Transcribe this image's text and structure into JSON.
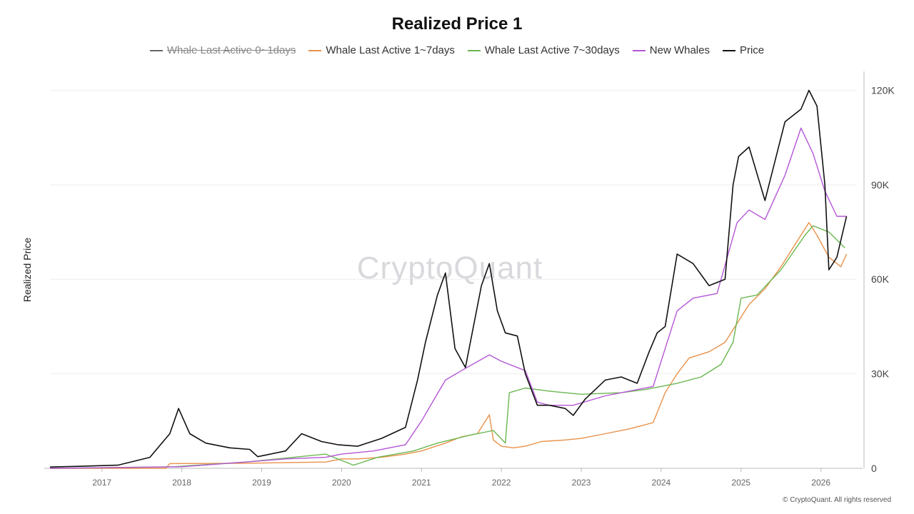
{
  "chart_data": {
    "type": "line",
    "title": "Realized Price 1",
    "ylabel": "Realized Price",
    "ylim": [
      0,
      126000
    ],
    "y_ticks": [
      {
        "value": 0,
        "label": "0"
      },
      {
        "value": 30000,
        "label": "30K"
      },
      {
        "value": 60000,
        "label": "60K"
      },
      {
        "value": 90000,
        "label": "90K"
      },
      {
        "value": 120000,
        "label": "120K"
      }
    ],
    "x_ticks": [
      "2017",
      "2018",
      "2019",
      "2020",
      "2021",
      "2022",
      "2023",
      "2024",
      "2025",
      "2026"
    ],
    "xlim": [
      2016.35,
      2026.45
    ],
    "grid": true,
    "legend_position": "top",
    "watermark": "CryptoQuant",
    "copyright": "© CryptoQuant. All rights reserved",
    "series": [
      {
        "name": "Whale Last Active 0~1days",
        "color": "#666666",
        "disabled": true,
        "x": [],
        "y": []
      },
      {
        "name": "Whale Last Active 1~7days",
        "color": "#e8914a",
        "disabled": false,
        "x": [
          2016.35,
          2017.8,
          2017.85,
          2018.8,
          2019.8,
          2020.0,
          2020.2,
          2020.5,
          2020.8,
          2021.0,
          2021.3,
          2021.5,
          2021.7,
          2021.85,
          2021.9,
          2022.0,
          2022.15,
          2022.3,
          2022.5,
          2022.8,
          2023.0,
          2023.3,
          2023.6,
          2023.9,
          2024.05,
          2024.2,
          2024.35,
          2024.6,
          2024.8,
          2024.95,
          2025.1,
          2025.3,
          2025.5,
          2025.7,
          2025.85,
          2025.95,
          2026.1,
          2026.25,
          2026.32
        ],
        "y": [
          0,
          0,
          1500,
          1600,
          2000,
          3000,
          3000,
          3500,
          4500,
          5500,
          8000,
          10000,
          11000,
          17000,
          9000,
          7000,
          6500,
          7000,
          8500,
          9000,
          9500,
          11000,
          12500,
          14500,
          24000,
          30000,
          35000,
          37000,
          40000,
          46000,
          52000,
          57000,
          64000,
          72000,
          78000,
          74000,
          67000,
          64000,
          68000
        ]
      },
      {
        "name": "Whale Last Active 7~30days",
        "color": "#6ab750",
        "disabled": false,
        "x": [
          2016.35,
          2017.9,
          2018.8,
          2019.8,
          2020.15,
          2020.45,
          2020.9,
          2021.2,
          2021.6,
          2021.9,
          2022.05,
          2022.1,
          2022.3,
          2022.6,
          2023.0,
          2023.5,
          2023.8,
          2024.0,
          2024.2,
          2024.5,
          2024.75,
          2024.9,
          2025.0,
          2025.2,
          2025.5,
          2025.8,
          2025.9,
          2026.1,
          2026.3
        ],
        "y": [
          0,
          500,
          2000,
          4500,
          1000,
          3500,
          5500,
          8000,
          10500,
          12000,
          8000,
          24000,
          25500,
          24500,
          23500,
          24000,
          25000,
          26000,
          27000,
          29000,
          33000,
          40000,
          54000,
          55000,
          63000,
          74000,
          77000,
          75000,
          70000
        ]
      },
      {
        "name": "New Whales",
        "color": "#b556d6",
        "disabled": false,
        "x": [
          2016.35,
          2018.0,
          2018.8,
          2019.3,
          2019.8,
          2020.0,
          2020.4,
          2020.8,
          2021.0,
          2021.3,
          2021.5,
          2021.85,
          2022.0,
          2022.3,
          2022.45,
          2022.6,
          2022.9,
          2023.3,
          2023.6,
          2023.9,
          2024.2,
          2024.4,
          2024.7,
          2024.95,
          2025.1,
          2025.3,
          2025.55,
          2025.75,
          2025.9,
          2026.05,
          2026.2,
          2026.32
        ],
        "y": [
          0,
          500,
          2000,
          3000,
          3500,
          4500,
          5500,
          7500,
          15000,
          28000,
          31000,
          36000,
          34000,
          31000,
          21000,
          20000,
          20000,
          23000,
          24500,
          26000,
          50000,
          54000,
          55500,
          78000,
          82000,
          79000,
          93000,
          108000,
          100000,
          88000,
          80000,
          80000
        ]
      },
      {
        "name": "Price",
        "color": "#111111",
        "disabled": false,
        "x": [
          2016.35,
          2016.8,
          2017.2,
          2017.6,
          2017.85,
          2017.96,
          2018.1,
          2018.3,
          2018.6,
          2018.85,
          2018.95,
          2019.3,
          2019.5,
          2019.75,
          2019.95,
          2020.2,
          2020.5,
          2020.8,
          2020.95,
          2021.05,
          2021.2,
          2021.3,
          2021.42,
          2021.55,
          2021.75,
          2021.85,
          2021.95,
          2022.05,
          2022.2,
          2022.3,
          2022.45,
          2022.6,
          2022.8,
          2022.9,
          2023.05,
          2023.3,
          2023.5,
          2023.7,
          2023.85,
          2023.95,
          2024.05,
          2024.2,
          2024.4,
          2024.6,
          2024.8,
          2024.9,
          2024.97,
          2025.1,
          2025.3,
          2025.4,
          2025.55,
          2025.75,
          2025.85,
          2025.95,
          2026.05,
          2026.1,
          2026.2,
          2026.32
        ],
        "y": [
          400,
          700,
          1000,
          3500,
          11000,
          19000,
          11000,
          8000,
          6500,
          6000,
          3700,
          5500,
          11000,
          8500,
          7500,
          7000,
          9500,
          13000,
          28000,
          40000,
          55000,
          62000,
          38000,
          32000,
          58000,
          65000,
          50000,
          43000,
          42000,
          30000,
          20000,
          20000,
          19000,
          16800,
          22000,
          28000,
          29000,
          27000,
          37000,
          43000,
          45000,
          68000,
          65000,
          58000,
          60000,
          90000,
          99000,
          102000,
          85000,
          95000,
          110000,
          114000,
          120000,
          115000,
          90000,
          63000,
          67000,
          80000
        ]
      }
    ]
  }
}
